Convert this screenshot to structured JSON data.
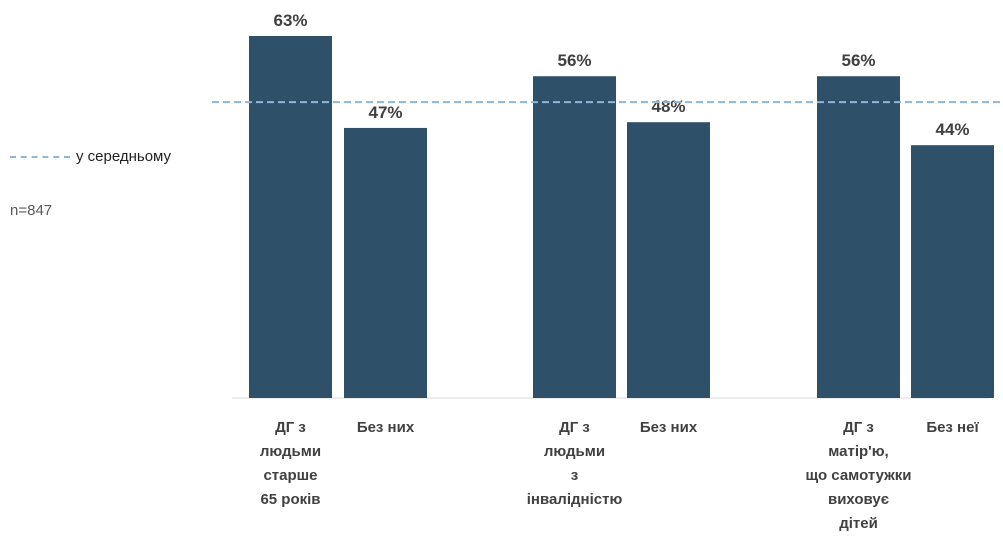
{
  "chart_data": {
    "type": "bar",
    "title": "",
    "xlabel": "",
    "ylabel": "",
    "ylim": [
      0,
      65
    ],
    "grid": false,
    "categories": [
      [
        "ДГ з",
        "людьми",
        "старше",
        "65 років"
      ],
      [
        "Без них"
      ],
      [
        "ДГ з",
        "людьми",
        "з",
        "інвалідністю"
      ],
      [
        "Без них"
      ],
      [
        "ДГ з",
        "матір'ю,",
        "що самотужки",
        "виховує",
        "дітей"
      ],
      [
        "Без неї"
      ]
    ],
    "values": [
      63,
      47,
      56,
      48,
      56,
      44
    ],
    "value_labels": [
      "63%",
      "47%",
      "56%",
      "48%",
      "56%",
      "44%"
    ],
    "bar_color": "#2e5069",
    "average": {
      "label": "у середньому",
      "value": 51.5,
      "color": "#8fb8d8",
      "style": "dashed"
    },
    "sample_note": "n=847"
  }
}
